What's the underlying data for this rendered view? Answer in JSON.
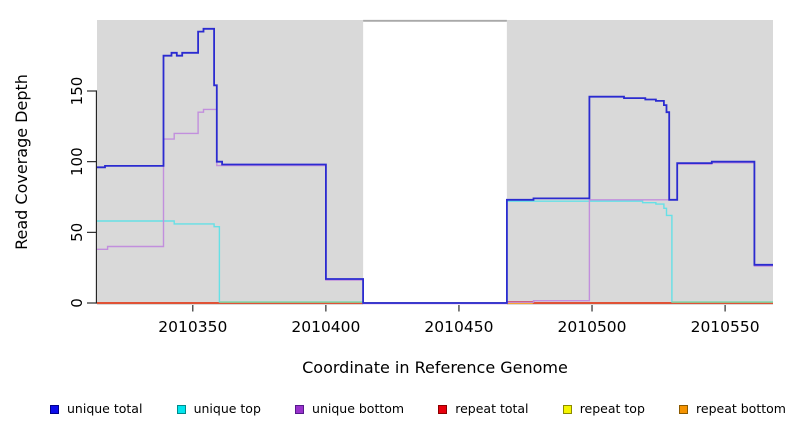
{
  "chart_data": {
    "type": "line",
    "subtype": "step-coverage-plot",
    "title": "",
    "xlabel": "Coordinate in Reference Genome",
    "ylabel": "Read Coverage Depth",
    "x_range": [
      2010314,
      2010568
    ],
    "y_range": [
      0,
      200
    ],
    "x_ticks": [
      "2010350",
      "2010400",
      "2010450",
      "2010500",
      "2010550"
    ],
    "x_tick_values": [
      2010350,
      2010400,
      2010450,
      2010500,
      2010550
    ],
    "y_ticks": [
      "0",
      "50",
      "100",
      "150"
    ],
    "y_tick_values": [
      0,
      50,
      100,
      150
    ],
    "grid": false,
    "plot_background_color": "#d9d9d9",
    "masked_region": {
      "x_start": 2010414,
      "x_end": 2010468,
      "fill": "#ffffff",
      "top_border_color": "#a9a9a9"
    },
    "legend_position": "bottom",
    "legend": [
      {
        "label": "unique total",
        "fill": "#0d0deb",
        "border": "#00008b"
      },
      {
        "label": "unique top",
        "fill": "#00e5ee",
        "border": "#008b8b"
      },
      {
        "label": "unique bottom",
        "fill": "#9932cc",
        "border": "#551a8b"
      },
      {
        "label": "repeat total",
        "fill": "#e8000d",
        "border": "#8b0000"
      },
      {
        "label": "repeat top",
        "fill": "#f5f500",
        "border": "#8b8b00"
      },
      {
        "label": "repeat bottom",
        "fill": "#f59300",
        "border": "#8b5a00"
      }
    ],
    "series": [
      {
        "name": "repeat top",
        "color": "#f2f20c",
        "width": 1.4,
        "points": [
          [
            2010314,
            0
          ]
        ]
      },
      {
        "name": "repeat bottom",
        "color": "#ff8c1c",
        "width": 1.6,
        "points": [
          [
            2010314,
            0
          ]
        ]
      },
      {
        "name": "repeat total",
        "color": "#d93030",
        "width": 1.4,
        "points": [
          [
            2010314,
            0
          ],
          [
            2010468,
            0.9
          ],
          [
            2010478,
            0
          ]
        ]
      },
      {
        "name": "unique top",
        "color": "#66e0e6",
        "width": 1.4,
        "points": [
          [
            2010314,
            58
          ],
          [
            2010343,
            56
          ],
          [
            2010358,
            54
          ],
          [
            2010360,
            0.8
          ],
          [
            2010414,
            0
          ],
          [
            2010468,
            72
          ],
          [
            2010519,
            71
          ],
          [
            2010524,
            70
          ],
          [
            2010527,
            67
          ],
          [
            2010528,
            62
          ],
          [
            2010530,
            0.8
          ]
        ]
      },
      {
        "name": "unique bottom",
        "color": "#c28fdd",
        "width": 1.4,
        "points": [
          [
            2010314,
            38
          ],
          [
            2010318,
            40
          ],
          [
            2010339,
            116
          ],
          [
            2010343,
            120
          ],
          [
            2010352,
            135
          ],
          [
            2010354,
            137
          ],
          [
            2010359,
            97.2
          ],
          [
            2010400,
            16.2
          ],
          [
            2010414,
            -0.4
          ],
          [
            2010468,
            0.6
          ],
          [
            2010478,
            1.6
          ],
          [
            2010499,
            73
          ],
          [
            2010532,
            98.2
          ],
          [
            2010545,
            99.2
          ],
          [
            2010561,
            26.2
          ]
        ]
      },
      {
        "name": "unique total",
        "color": "#2b2bd0",
        "width": 1.8,
        "points": [
          [
            2010314,
            96
          ],
          [
            2010317,
            97
          ],
          [
            2010339,
            175
          ],
          [
            2010342,
            177
          ],
          [
            2010344,
            175
          ],
          [
            2010346,
            177
          ],
          [
            2010352,
            192
          ],
          [
            2010354,
            194
          ],
          [
            2010358,
            154
          ],
          [
            2010359,
            100
          ],
          [
            2010361,
            98
          ],
          [
            2010400,
            17
          ],
          [
            2010414,
            0
          ],
          [
            2010468,
            73
          ],
          [
            2010478,
            74
          ],
          [
            2010499,
            146
          ],
          [
            2010512,
            145
          ],
          [
            2010520,
            144
          ],
          [
            2010524,
            143
          ],
          [
            2010527,
            140
          ],
          [
            2010528,
            135
          ],
          [
            2010529,
            73
          ],
          [
            2010532,
            99
          ],
          [
            2010545,
            100
          ],
          [
            2010561,
            27
          ]
        ]
      }
    ],
    "baseline_overlays": [
      {
        "x_start": 2010360,
        "x_end": 2010414,
        "value": 0.6,
        "color": "#8fcf95",
        "width": 1.4
      },
      {
        "x_start": 2010530,
        "x_end": 2010568,
        "value": 0.6,
        "color": "#8fcf95",
        "width": 1.4
      }
    ]
  }
}
